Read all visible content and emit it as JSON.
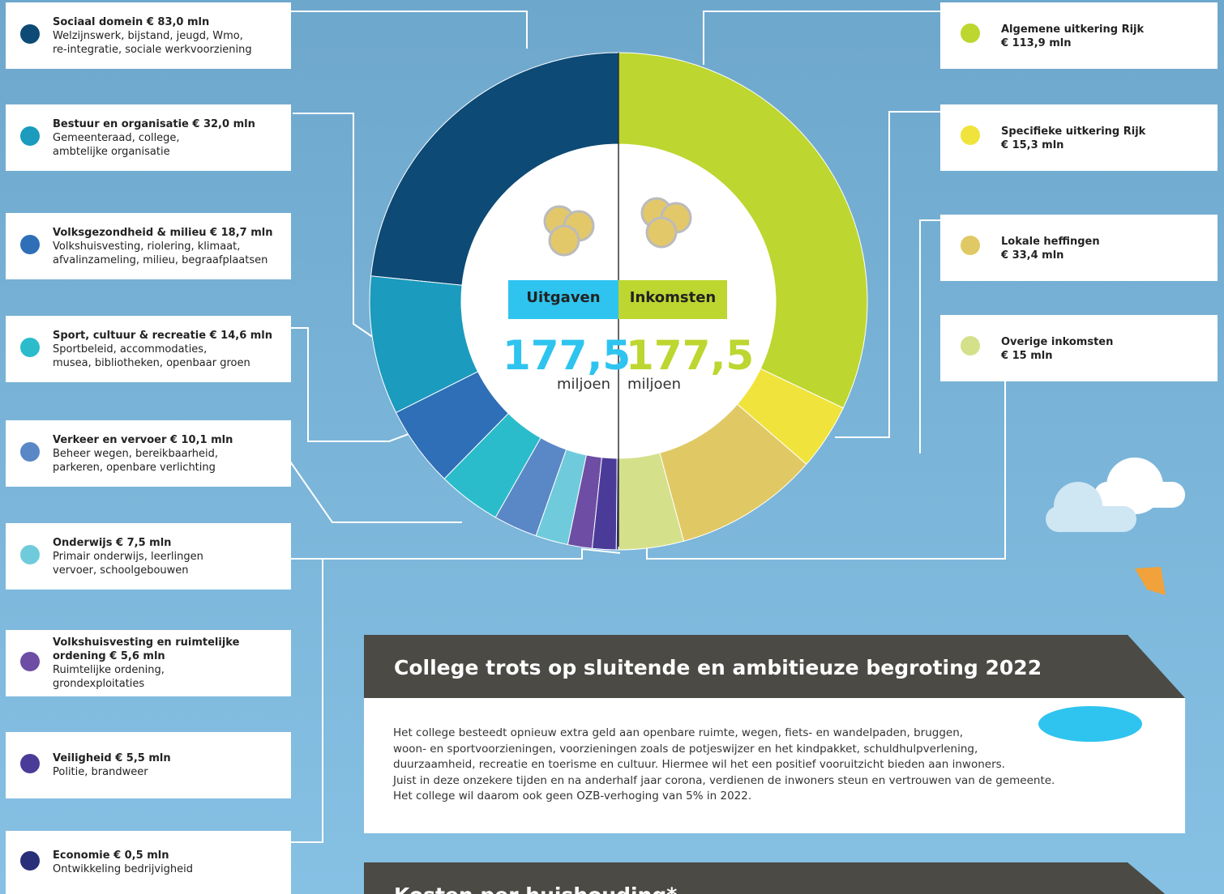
{
  "expenses": {
    "title": "Uitgaven",
    "total": "177,5",
    "unit": "miljoen",
    "items": [
      {
        "name": "Sociaal domein",
        "value": 83.0,
        "value_label": "€ 83,0 mln",
        "description": [
          "Welzijnswerk, bijstand, jeugd, Wmo,",
          "re-integratie, sociale werkvoorziening"
        ],
        "color": "#0d4a75"
      },
      {
        "name": "Bestuur en organisatie",
        "value": 32.0,
        "value_label": "€ 32,0 mln",
        "description": [
          "Gemeenteraad, college,",
          "ambtelijke organisatie"
        ],
        "color": "#1b9bbd"
      },
      {
        "name": "Volksgezondheid & milieu",
        "value": 18.7,
        "value_label": "€ 18,7 mln",
        "description": [
          "Volkshuisvesting, riolering, klimaat,",
          "afvalinzameling, milieu, begraafplaatsen"
        ],
        "color": "#2e6fb7"
      },
      {
        "name": "Sport, cultuur & recreatie",
        "value": 14.6,
        "value_label": "€ 14,6 mln",
        "description": [
          "Sportbeleid, accommodaties,",
          "musea, bibliotheken, openbaar groen"
        ],
        "color": "#2bbccc"
      },
      {
        "name": "Verkeer en vervoer",
        "value": 10.1,
        "value_label": "€ 10,1 mln",
        "description": [
          "Beheer wegen, bereikbaarheid,",
          "parkeren, openbare verlichting"
        ],
        "color": "#5a87c6"
      },
      {
        "name": "Onderwijs",
        "value": 7.5,
        "value_label": "€ 7,5 mln",
        "description": [
          "Primair onderwijs, leerlingen",
          "vervoer, schoolgebouwen"
        ],
        "color": "#6fcbdc"
      },
      {
        "name": "Volkshuisvesting en ruimtelijke ordening",
        "value": 5.6,
        "value_label": "€ 5,6 mln",
        "description": [
          "Ruimtelijke ordening,",
          "grondexploitaties"
        ],
        "color": "#6d4ea4"
      },
      {
        "name": "Veiligheid",
        "value": 5.5,
        "value_label": "€ 5,5 mln",
        "description": [
          "Politie, brandweer"
        ],
        "color": "#4b3b99"
      },
      {
        "name": "Economie",
        "value": 0.5,
        "value_label": "€ 0,5 mln",
        "description": [
          "Ontwikkeling bedrijvigheid"
        ],
        "color": "#2a2f7a"
      }
    ]
  },
  "income": {
    "title": "Inkomsten",
    "total": "177,5",
    "unit": "miljoen",
    "items": [
      {
        "name": "Algemene uitkering Rijk",
        "value": 113.9,
        "value_label": "€ 113,9 mln",
        "color": "#bdd630"
      },
      {
        "name": "Specifieke uitkering Rijk",
        "value": 15.3,
        "value_label": "€ 15,3 mln",
        "color": "#f0e33c"
      },
      {
        "name": "Lokale heffingen",
        "value": 33.4,
        "value_label": "€ 33,4 mln",
        "color": "#e0c964"
      },
      {
        "name": "Overige inkomsten",
        "value": 15,
        "value_label": "€ 15 mln",
        "color": "#d5e08b"
      }
    ]
  },
  "article": {
    "title": "College trots op sluitende en ambitieuze begroting 2022",
    "body": [
      "Het college besteedt opnieuw extra geld aan openbare ruimte, wegen, fiets- en wandelpaden, bruggen,",
      "woon- en sportvoorzieningen, voorzieningen zoals de potjeswijzer en het kindpakket, schuldhulpverlening,",
      "duurzaamheid, recreatie en toerisme en cultuur. Hiermee wil het een positief vooruitzicht bieden aan inwoners.",
      "Juist in deze onzekere tijden en na anderhalf jaar corona, verdienen de inwoners steun en vertrouwen van de gemeente.",
      "Het college wil daarom ook geen OZB-verhoging van 5% in 2022."
    ]
  },
  "costs": {
    "title": "Kosten per huishouding*"
  }
}
